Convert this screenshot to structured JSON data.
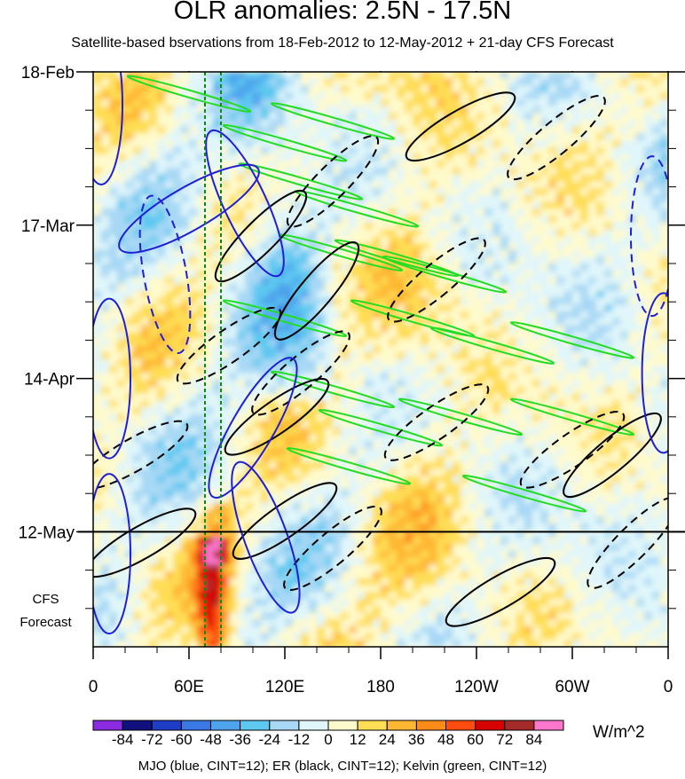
{
  "chart_data": {
    "type": "heatmap",
    "title": "OLR anomalies: 2.5N - 17.5N",
    "subtitle": "Satellite-based bservations from 18-Feb-2012 to 12-May-2012 + 21-day CFS Forecast",
    "x_tick_labels": [
      "0",
      "60E",
      "120E",
      "180",
      "120W",
      "60W",
      "0"
    ],
    "x_ticks_deg": [
      0,
      60,
      120,
      180,
      240,
      300,
      360
    ],
    "y_tick_labels": [
      "18-Feb",
      "17-Mar",
      "14-Apr",
      "12-May"
    ],
    "y_ticks_day": [
      0,
      28,
      56,
      84
    ],
    "time_range_days": [
      0,
      105
    ],
    "observation_end_day": 84,
    "forecast_label": "CFS\nForecast",
    "colorbar": {
      "labels": [
        "-84",
        "-72",
        "-60",
        "-48",
        "-36",
        "-24",
        "-12",
        "0",
        "12",
        "24",
        "36",
        "48",
        "60",
        "72",
        "84"
      ],
      "colors": [
        "#8a2be2",
        "#10107e",
        "#1f3ec8",
        "#3a78e6",
        "#4ea3ec",
        "#5dc8f0",
        "#a7d8f5",
        "#e0f6fa",
        "#fffacc",
        "#ffdd55",
        "#ffb732",
        "#ff8c1a",
        "#ff4c0f",
        "#d60000",
        "#a52a2a",
        "#ff77cc"
      ],
      "units": "W/m^2"
    },
    "series": [
      {
        "name": "MJO",
        "color": "#1f1fd6",
        "contour_interval": 12
      },
      {
        "name": "ER",
        "color": "#000000",
        "contour_interval": 12
      },
      {
        "name": "Kelvin",
        "color": "#22dd22",
        "contour_interval": 12
      }
    ],
    "reference_longitudes_deg": [
      70,
      80
    ],
    "footer": "MJO (blue, CINT=12); ER (black, CINT=12); Kelvin (green, CINT=12)"
  }
}
